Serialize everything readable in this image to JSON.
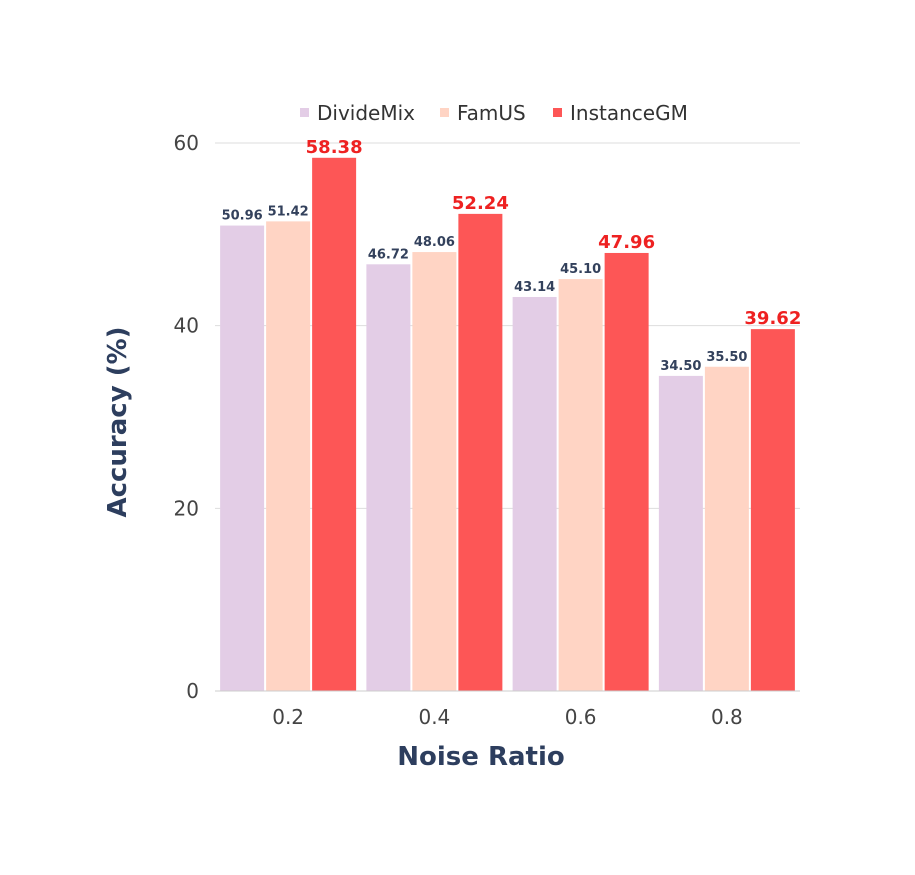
{
  "chart_data": {
    "type": "bar",
    "categories": [
      "0.2",
      "0.4",
      "0.6",
      "0.8"
    ],
    "series": [
      {
        "name": "DivideMix",
        "values": [
          50.96,
          46.72,
          43.14,
          34.5
        ],
        "labels": [
          "50.96",
          "46.72",
          "43.14",
          "34.50"
        ],
        "color": "#e3cde6",
        "label_color": "#33415c",
        "label_emphasis": false
      },
      {
        "name": "FamUS",
        "values": [
          51.42,
          48.06,
          45.1,
          35.5
        ],
        "labels": [
          "51.42",
          "48.06",
          "45.10",
          "35.50"
        ],
        "color": "#ffd4c4",
        "label_color": "#33415c",
        "label_emphasis": false
      },
      {
        "name": "InstanceGM",
        "values": [
          58.38,
          52.24,
          47.96,
          39.62
        ],
        "labels": [
          "58.38",
          "52.24",
          "47.96",
          "39.62"
        ],
        "color": "#fd5656",
        "label_color": "#ee2121",
        "label_emphasis": true
      }
    ],
    "xlabel": "Noise Ratio",
    "ylabel": "Accuracy (%)",
    "ylim": [
      0,
      60
    ],
    "yticks": [
      0,
      20,
      40,
      60
    ],
    "grid": true,
    "legend_position": "top"
  }
}
